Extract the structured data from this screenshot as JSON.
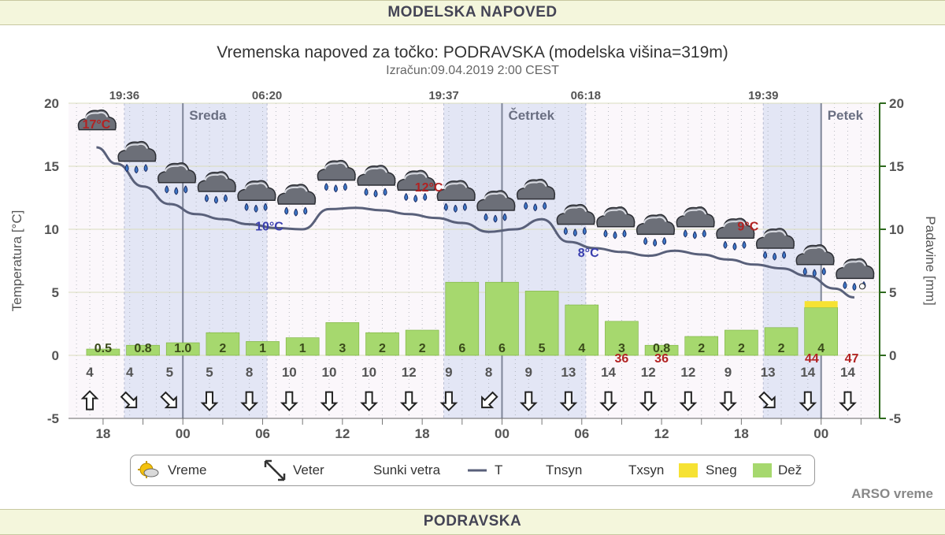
{
  "header": {
    "top_title": "MODELSKA NAPOVED",
    "bottom_title": "PODRAVSKA"
  },
  "credits": "ARSO vreme",
  "colors": {
    "temp_line": "#59607a",
    "rain_bar": "#a6d86e",
    "rain_border": "#7ab03c",
    "snow": "#f6e233",
    "night_band": "#e3e6f5",
    "day_band": "#fbf7fb",
    "warm_label": "#b22222",
    "cold_label": "#3a3faf",
    "right_axis": "#2e6a1e"
  },
  "legend": [
    {
      "label": "Vreme",
      "symbol": "sun-icon"
    },
    {
      "label": "Veter",
      "symbol": "wind-arrow-icon"
    },
    {
      "label": "Sunki vetra",
      "symbol": ""
    },
    {
      "label": "T",
      "symbol": "line"
    },
    {
      "label": "Tnsyn",
      "symbol": ""
    },
    {
      "label": "Txsyn",
      "symbol": ""
    },
    {
      "label": "Sneg",
      "symbol": "snow-swatch"
    },
    {
      "label": "Dež",
      "symbol": "rain-swatch"
    }
  ],
  "chart_data": {
    "type": "bar",
    "title": "Vremenska napoved za točko: PODRAVSKA (modelska višina=319m)",
    "subtitle": "Izračun:09.04.2019 2:00 CEST",
    "ylabel": "Temperatura [°C]",
    "y2label": "Padavine [mm]",
    "ylim": [
      -5,
      20
    ],
    "y2lim": [
      -5,
      20
    ],
    "yticks": [
      "-5",
      "0",
      "5",
      "10",
      "15",
      "20"
    ],
    "xticks": [
      {
        "h": 18,
        "label": "18"
      },
      {
        "h": 24,
        "label": "00"
      },
      {
        "h": 30,
        "label": "06"
      },
      {
        "h": 36,
        "label": "12"
      },
      {
        "h": 42,
        "label": "18"
      },
      {
        "h": 48,
        "label": "00"
      },
      {
        "h": 54,
        "label": "06"
      },
      {
        "h": 60,
        "label": "12"
      },
      {
        "h": 66,
        "label": "18"
      },
      {
        "h": 72,
        "label": "00"
      }
    ],
    "days": [
      {
        "h": 24,
        "label": "Sreda"
      },
      {
        "h": 48,
        "label": "Četrtek"
      },
      {
        "h": 72,
        "label": "Petek"
      }
    ],
    "sun_events": [
      {
        "h": 19.6,
        "label": "19:36"
      },
      {
        "h": 30.33,
        "label": "06:20"
      },
      {
        "h": 43.62,
        "label": "19:37"
      },
      {
        "h": 54.3,
        "label": "06:18"
      },
      {
        "h": 67.65,
        "label": "19:39"
      }
    ],
    "night_bands": [
      [
        19.6,
        30.33
      ],
      [
        43.62,
        54.3
      ],
      [
        67.65,
        72.0
      ]
    ],
    "times": [
      18,
      21,
      24,
      27,
      30,
      33,
      36,
      39,
      42,
      45,
      48,
      51,
      54,
      57,
      60,
      63,
      66,
      69,
      72
    ],
    "rain_mm": [
      0.5,
      0.8,
      1.0,
      1.8,
      1.1,
      1.4,
      2.6,
      1.8,
      2.0,
      5.8,
      5.8,
      5.1,
      4.0,
      2.7,
      0.8,
      1.5,
      2.0,
      2.2,
      3.8
    ],
    "rain_labels": [
      "0.5",
      "0.8",
      "1.0",
      "2",
      "1",
      "1",
      "3",
      "2",
      "2",
      "6",
      "6",
      "5",
      "4",
      "3",
      "0.8",
      "2",
      "2",
      "2",
      "4"
    ],
    "snow_mm": [
      0,
      0,
      0,
      0,
      0,
      0,
      0,
      0,
      0,
      0,
      0,
      0,
      0,
      0,
      0,
      0,
      0,
      0,
      0.5
    ],
    "wind_speed": [
      "4",
      "4",
      "5",
      "5",
      "8",
      "10",
      "10",
      "10",
      "12",
      "9",
      "8",
      "9",
      "13",
      "14",
      "12",
      "12",
      "9",
      "13",
      "14",
      "14"
    ],
    "wind_rotation_deg": [
      180,
      315,
      315,
      0,
      0,
      0,
      0,
      0,
      0,
      0,
      45,
      0,
      0,
      0,
      0,
      0,
      0,
      315,
      0,
      0
    ],
    "wind_times": [
      17,
      20,
      23,
      26,
      29,
      32,
      35,
      38,
      41,
      44,
      47,
      50,
      53,
      56,
      59,
      62,
      65,
      68,
      71,
      74
    ],
    "gusts": [
      {
        "h": 57,
        "label": "36"
      },
      {
        "h": 60,
        "label": "36"
      },
      {
        "h": 71.3,
        "label": "44"
      },
      {
        "h": 74.3,
        "label": "47"
      }
    ],
    "temperature": {
      "name": "T",
      "x": [
        17.5,
        19,
        21,
        23,
        25,
        27,
        29,
        31,
        33,
        35,
        37,
        39,
        41,
        43,
        45,
        47,
        49,
        51,
        53,
        55,
        57,
        59,
        61,
        63,
        65,
        67,
        69,
        71,
        73,
        74.5
      ],
      "y": [
        16.5,
        15.2,
        13.4,
        12.0,
        11.2,
        10.8,
        10.4,
        10.1,
        10.0,
        11.6,
        11.7,
        11.5,
        11.2,
        10.9,
        10.5,
        9.8,
        10.0,
        10.8,
        9.0,
        8.5,
        8.2,
        7.9,
        8.3,
        8.0,
        7.6,
        7.2,
        6.9,
        6.3,
        5.3,
        4.6
      ]
    },
    "temp_annotations": [
      {
        "h": 17.5,
        "y": 18.0,
        "label": "17°C",
        "kind": "max"
      },
      {
        "h": 30.5,
        "y": 9.9,
        "label": "10°C",
        "kind": "min"
      },
      {
        "h": 42.5,
        "y": 13.0,
        "label": "12°C",
        "kind": "max"
      },
      {
        "h": 54.5,
        "y": 7.8,
        "label": "8°C",
        "kind": "min"
      },
      {
        "h": 66.5,
        "y": 9.9,
        "label": "9°C",
        "kind": "max"
      }
    ],
    "weather_icons": [
      {
        "h": 17.5,
        "y": 18.4,
        "kind": "cloud"
      },
      {
        "h": 20.5,
        "y": 15.9,
        "kind": "rain"
      },
      {
        "h": 23.5,
        "y": 14.2,
        "kind": "rain"
      },
      {
        "h": 26.5,
        "y": 13.5,
        "kind": "rain"
      },
      {
        "h": 29.5,
        "y": 12.8,
        "kind": "rain"
      },
      {
        "h": 32.5,
        "y": 12.5,
        "kind": "rain"
      },
      {
        "h": 35.5,
        "y": 14.4,
        "kind": "rain"
      },
      {
        "h": 38.5,
        "y": 14.0,
        "kind": "rain"
      },
      {
        "h": 41.5,
        "y": 13.6,
        "kind": "rain"
      },
      {
        "h": 44.5,
        "y": 12.8,
        "kind": "rain"
      },
      {
        "h": 47.5,
        "y": 12.0,
        "kind": "rain"
      },
      {
        "h": 50.5,
        "y": 12.9,
        "kind": "rain"
      },
      {
        "h": 53.5,
        "y": 10.9,
        "kind": "rain"
      },
      {
        "h": 56.5,
        "y": 10.7,
        "kind": "rain"
      },
      {
        "h": 59.5,
        "y": 10.1,
        "kind": "rain"
      },
      {
        "h": 62.5,
        "y": 10.7,
        "kind": "rain"
      },
      {
        "h": 65.5,
        "y": 9.8,
        "kind": "rain"
      },
      {
        "h": 68.5,
        "y": 9.0,
        "kind": "rain"
      },
      {
        "h": 71.5,
        "y": 7.7,
        "kind": "rain"
      },
      {
        "h": 74.5,
        "y": 6.6,
        "kind": "snowrain"
      }
    ]
  }
}
